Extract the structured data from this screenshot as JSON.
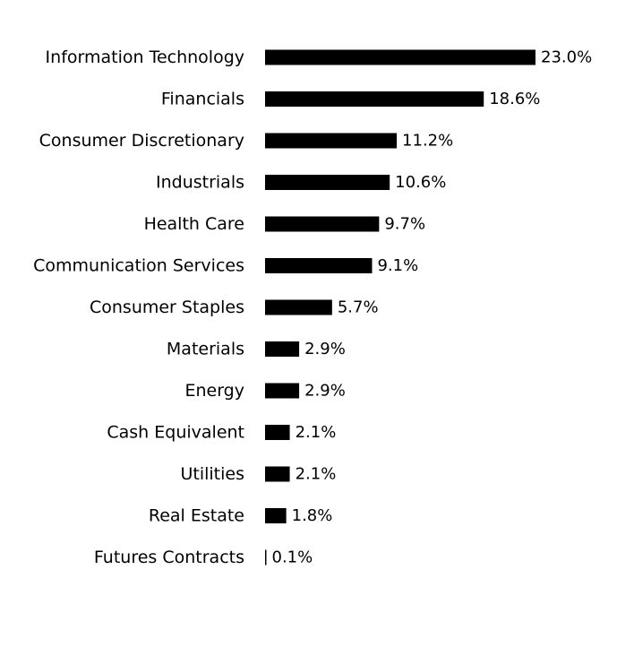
{
  "chart_data": {
    "type": "bar",
    "orientation": "horizontal",
    "categories": [
      "Information Technology",
      "Financials",
      "Consumer Discretionary",
      "Industrials",
      "Health Care",
      "Communication Services",
      "Consumer Staples",
      "Materials",
      "Energy",
      "Cash Equivalent",
      "Utilities",
      "Real Estate",
      "Futures Contracts"
    ],
    "values": [
      23.0,
      18.6,
      11.2,
      10.6,
      9.7,
      9.1,
      5.7,
      2.9,
      2.9,
      2.1,
      2.1,
      1.8,
      0.1
    ],
    "value_labels": [
      "23.0%",
      "18.6%",
      "11.2%",
      "10.6%",
      "9.7%",
      "9.1%",
      "5.7%",
      "2.9%",
      "2.9%",
      "2.1%",
      "2.1%",
      "1.8%",
      "0.1%"
    ],
    "bar_color": "#000000",
    "xlim": [
      0,
      23.0
    ],
    "grid": false,
    "legend": "none"
  }
}
